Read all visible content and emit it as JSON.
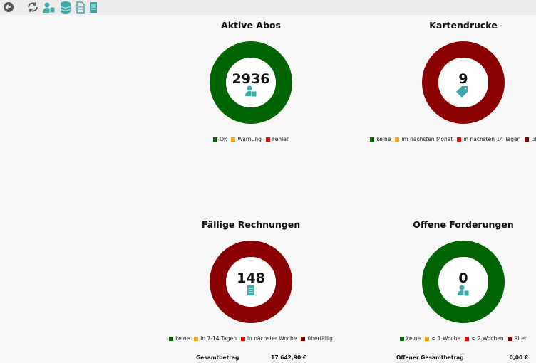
{
  "panels": [
    {
      "title": "Aktive Abos",
      "value": 2936,
      "ring_color": "#006400",
      "legend": [
        {
          "name": "Ok",
          "color": "#006400"
        },
        {
          "name": "Warnung",
          "color": "#ffa500"
        },
        {
          "name": "Fehler",
          "color": "#ff0000"
        }
      ]
    },
    {
      "title": "Kartendrucke",
      "value": 9,
      "ring_color": "#8b0000",
      "legend": [
        {
          "name": "keine",
          "color": "#006400"
        },
        {
          "name": "im nächsten Monat",
          "color": "#ffa500"
        },
        {
          "name": "in nächsten 14 Tagen",
          "color": "#ff0000"
        },
        {
          "name": "überfällig",
          "color": "#8b0000"
        }
      ]
    },
    {
      "title": "Fällige Rechnungen",
      "value": 148,
      "ring_color": "#8b0000",
      "legend": [
        {
          "name": "keine",
          "color": "#006400"
        },
        {
          "name": "in 7-14 Tagen",
          "color": "#ffa500"
        },
        {
          "name": "in nächster Woche",
          "color": "#ff0000"
        },
        {
          "name": "überfällig",
          "color": "#8b0000"
        }
      ],
      "footer": {
        "label": "Gesamtbetrag",
        "amount": "17 642,90 €"
      }
    },
    {
      "title": "Offene Forderungen",
      "value": 0,
      "ring_color": "#006400",
      "legend": [
        {
          "name": "keine",
          "color": "#006400"
        },
        {
          "name": "< 1 Woche",
          "color": "#ffa500"
        },
        {
          "name": "< 2 Wochen",
          "color": "#ff0000"
        },
        {
          "name": "älter",
          "color": "#8b0000"
        }
      ],
      "footer": {
        "label": "Offener Gesamtbetrag",
        "amount": "0,00 €"
      }
    }
  ]
}
